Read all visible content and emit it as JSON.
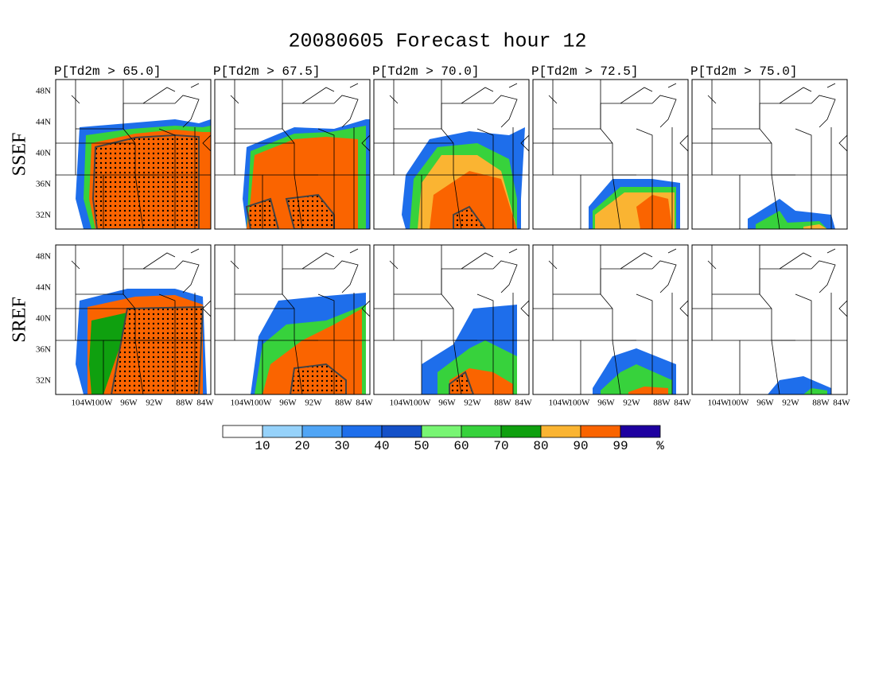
{
  "title": "20080605 Forecast hour 12",
  "panel_titles": [
    "P[Td2m > 65.0]",
    "P[Td2m > 67.5]",
    "P[Td2m > 70.0]",
    "P[Td2m > 72.5]",
    "P[Td2m > 75.0]"
  ],
  "row_labels": [
    "SSEF",
    "SREF"
  ],
  "lat_labels": [
    "48N",
    "44N",
    "40N",
    "36N",
    "32N"
  ],
  "lon_labels": [
    "104W",
    "100W",
    "96W",
    "92W",
    "88W",
    "84W"
  ],
  "colorbar": {
    "colors": [
      "#ffffff",
      "#96d2fa",
      "#50a5f5",
      "#1e6eeb",
      "#1450c8",
      "#78f573",
      "#37d23c",
      "#0fa00f",
      "#fab432",
      "#fa6400",
      "#1e00a0"
    ],
    "labels": [
      10,
      20,
      30,
      40,
      50,
      60,
      70,
      80,
      90,
      99
    ],
    "unit": "%"
  }
}
